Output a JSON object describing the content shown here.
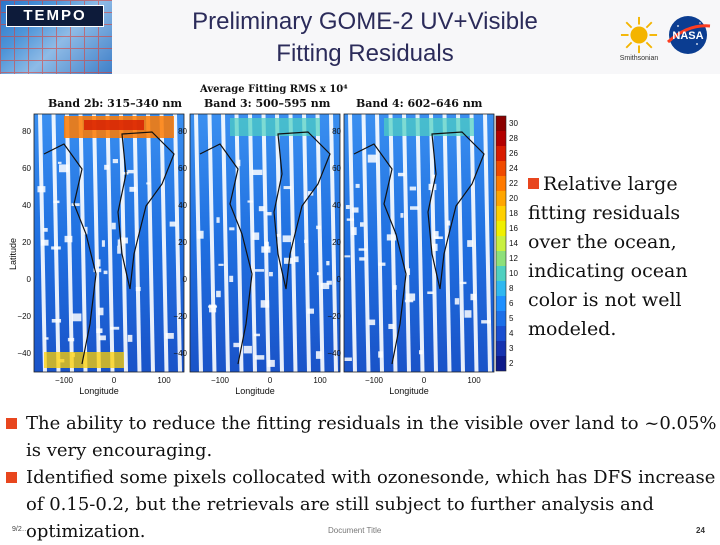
{
  "header": {
    "logo_text": "TEMPO",
    "title_line1": "Preliminary GOME-2 UV+Visible",
    "title_line2": "Fitting Residuals",
    "sun_logo_caption": "Smithsonian",
    "nasa_logo_text": "NASA"
  },
  "figure": {
    "title": "Average Fitting RMS x 10⁴",
    "bands": [
      {
        "label": "Band 2b: 315–340 nm"
      },
      {
        "label": "Band 3: 500–595 nm"
      },
      {
        "label": "Band 4: 602–646 nm"
      }
    ],
    "ylabel": "Latitude",
    "xlabel": "Longitude",
    "lat_ticks": [
      "80",
      "60",
      "40",
      "20",
      "0",
      "−20",
      "−40"
    ],
    "lon_ticks": [
      "−100",
      "0",
      "100"
    ],
    "colorbar_ticks": [
      "30",
      "28",
      "26",
      "24",
      "22",
      "20",
      "18",
      "16",
      "14",
      "12",
      "10",
      "8",
      "6",
      "5",
      "4",
      "3",
      "2"
    ],
    "colorbar_colors": [
      "#8b0000",
      "#b30000",
      "#d81b00",
      "#f04a00",
      "#ff7a00",
      "#ffa500",
      "#ffd000",
      "#f0f000",
      "#c8f040",
      "#8de07a",
      "#4fd0c0",
      "#2fb8f0",
      "#1e90ff",
      "#1c6fe8",
      "#1a4fd0",
      "#1633b0",
      "#0d1a8a"
    ]
  },
  "right_text": {
    "text": "Relative large fitting residuals over the ocean, indicating ocean color is not well modeled."
  },
  "bottom_bullets": [
    {
      "text": "The ability to reduce the fitting residuals in the visible over land to ~0.05% is very encouraging."
    },
    {
      "text": " Identified some pixels collocated with ozonesonde, which has DFS increase of 0.15-0.2, but the retrievals are still subject to further analysis and optimization."
    }
  ],
  "footer": {
    "date": "9/2…",
    "title": "Document Title",
    "page": "24"
  },
  "colors": {
    "accent_bullet": "#e8461e",
    "title_color": "#2b2b5a"
  }
}
